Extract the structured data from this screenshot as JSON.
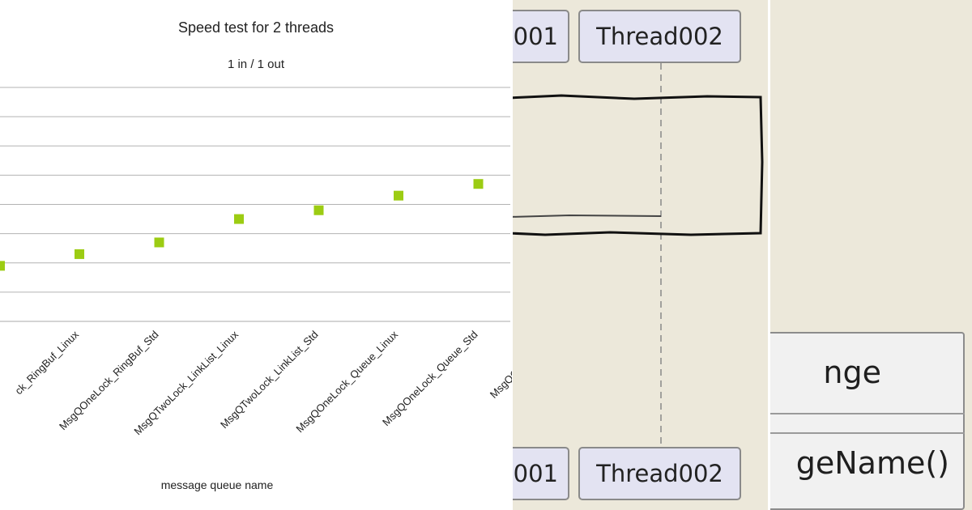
{
  "chart": {
    "title": "Speed test for 2 threads",
    "subtitle": "1 in / 1 out",
    "xlabel": "message queue name",
    "marker_color": "#9ccc13"
  },
  "chart_data": {
    "type": "scatter",
    "title": "Speed test for 2 threads",
    "subtitle": "1 in / 1 out",
    "xlabel": "message queue name",
    "ylabel": "",
    "grid": true,
    "categories": [
      "ck_RingBuf_Linux",
      "MsgQOneLock_RingBuf_Std",
      "MsgQTwoLock_LinkList_Linux",
      "MsgQTwoLock_LinkList_Std",
      "MsgQOneLock_Queue_Linux",
      "MsgQOneLock_Queue_Std",
      "MsgQOneLock_Lin"
    ],
    "values": [
      2.3,
      2.7,
      3.5,
      3.8,
      4.3,
      4.7,
      4.8
    ],
    "ylim": [
      0,
      8
    ]
  },
  "sequence": {
    "actor_left_top": "001",
    "actor_right_top": "Thread002",
    "actor_left_bottom": "001",
    "actor_right_bottom": "Thread002",
    "actor_fill": "#e3e3f2"
  },
  "class_box": {
    "name": "nge",
    "method": "geName()"
  }
}
